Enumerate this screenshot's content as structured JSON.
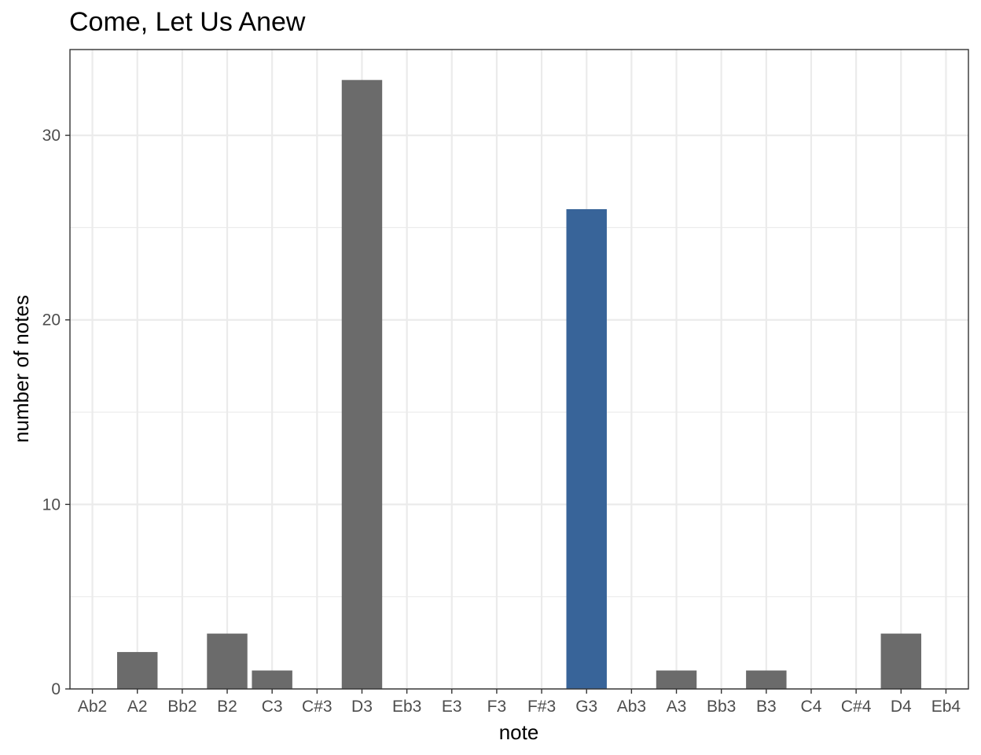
{
  "chart_data": {
    "type": "bar",
    "title": "Come, Let Us Anew",
    "xlabel": "note",
    "ylabel": "number of notes",
    "categories": [
      "Ab2",
      "A2",
      "Bb2",
      "B2",
      "C3",
      "C#3",
      "D3",
      "Eb3",
      "E3",
      "F3",
      "F#3",
      "G3",
      "Ab3",
      "A3",
      "Bb3",
      "B3",
      "C4",
      "C#4",
      "D4",
      "Eb4"
    ],
    "values": [
      0,
      2,
      0,
      3,
      1,
      0,
      33,
      0,
      0,
      0,
      0,
      26,
      0,
      1,
      0,
      1,
      0,
      0,
      3,
      0
    ],
    "highlight_category": "G3",
    "ylim": [
      0,
      34.65
    ],
    "yticks": [
      0,
      10,
      20,
      30
    ],
    "grid": true,
    "colors": {
      "bar": "#6b6b6b",
      "highlight": "#386499",
      "grid": "#ebebeb",
      "border": "#333333"
    }
  }
}
